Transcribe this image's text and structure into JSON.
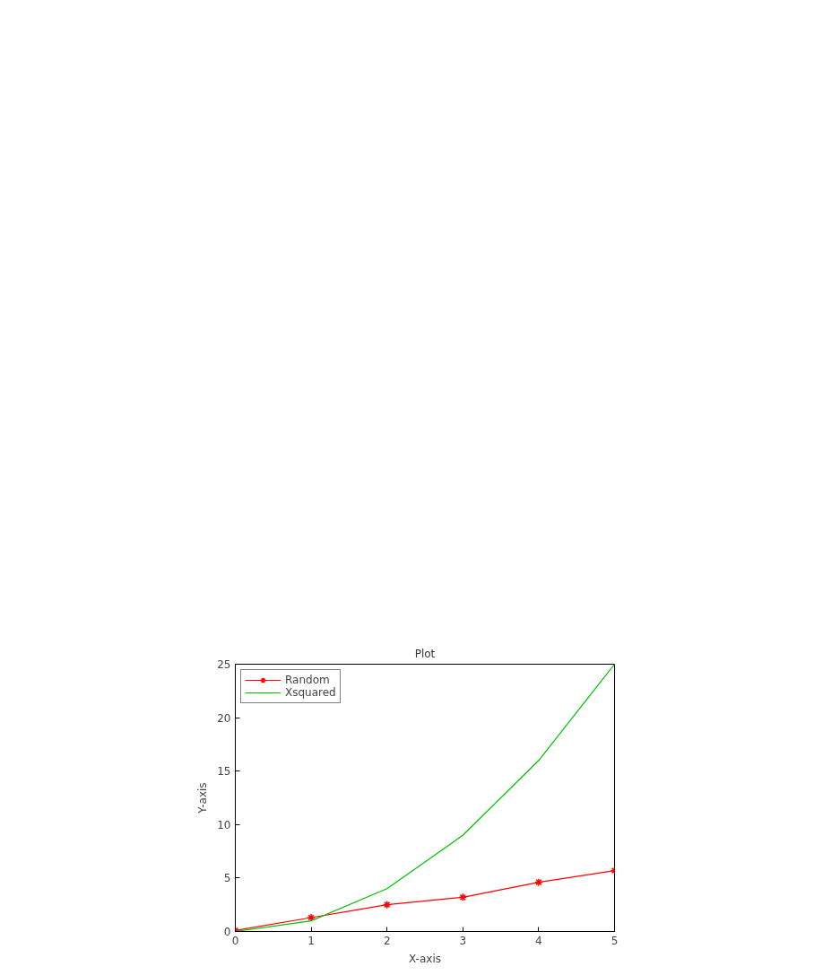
{
  "chart_data": {
    "type": "line",
    "title": "Plot",
    "xlabel": "X-axis",
    "ylabel": "Y-axis",
    "x": [
      0,
      1,
      2,
      3,
      4,
      5
    ],
    "series": [
      {
        "name": "Random",
        "color": "#ff0000",
        "marker": "cross",
        "values": [
          0.1,
          1.3,
          2.5,
          3.2,
          4.6,
          5.7
        ]
      },
      {
        "name": "Xsquared",
        "color": "#00c000",
        "marker": "none",
        "values": [
          0,
          1,
          4,
          9,
          16,
          25
        ]
      }
    ],
    "xlim": [
      0,
      5
    ],
    "xticks": [
      0,
      1,
      2,
      3,
      4,
      5
    ],
    "ylim": [
      0,
      25
    ],
    "yticks": [
      0,
      5,
      10,
      15,
      20,
      25
    ],
    "grid": false,
    "legend": "top left"
  }
}
